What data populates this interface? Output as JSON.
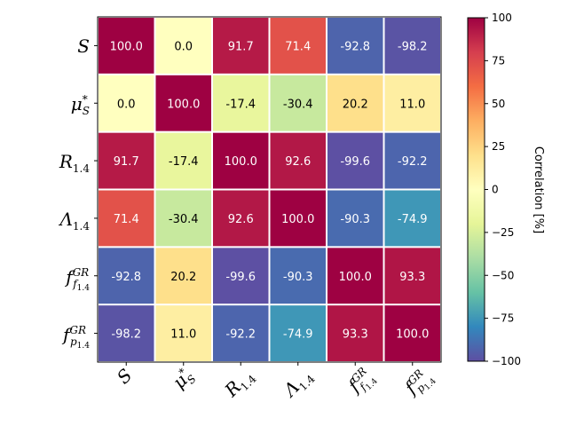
{
  "chart_data": {
    "type": "heatmap",
    "row_labels": [
      "S",
      "μ*S",
      "R1.4",
      "Λ1.4",
      "fGRf1.4",
      "fGRp1.4"
    ],
    "col_labels": [
      "S",
      "μ*S",
      "R1.4",
      "Λ1.4",
      "fGRf1.4",
      "fGRp1.4"
    ],
    "values": [
      [
        100.0,
        0.0,
        91.7,
        71.4,
        -92.8,
        -98.2
      ],
      [
        0.0,
        100.0,
        -17.4,
        -30.4,
        20.2,
        11.0
      ],
      [
        91.7,
        -17.4,
        100.0,
        92.6,
        -99.6,
        -92.2
      ],
      [
        71.4,
        -30.4,
        92.6,
        100.0,
        -90.3,
        -74.9
      ],
      [
        -92.8,
        20.2,
        -99.6,
        -90.3,
        100.0,
        93.3
      ],
      [
        -98.2,
        11.0,
        -92.2,
        -74.9,
        93.3,
        100.0
      ]
    ],
    "colorbar": {
      "label": "Correlation [%]",
      "range": [
        -100,
        100
      ],
      "ticks": [
        "100",
        "75",
        "50",
        "25",
        "0",
        "−25",
        "−50",
        "−75",
        "−100"
      ],
      "colormap": "Spectral_r"
    },
    "title": "",
    "xlabel": "",
    "ylabel": ""
  }
}
